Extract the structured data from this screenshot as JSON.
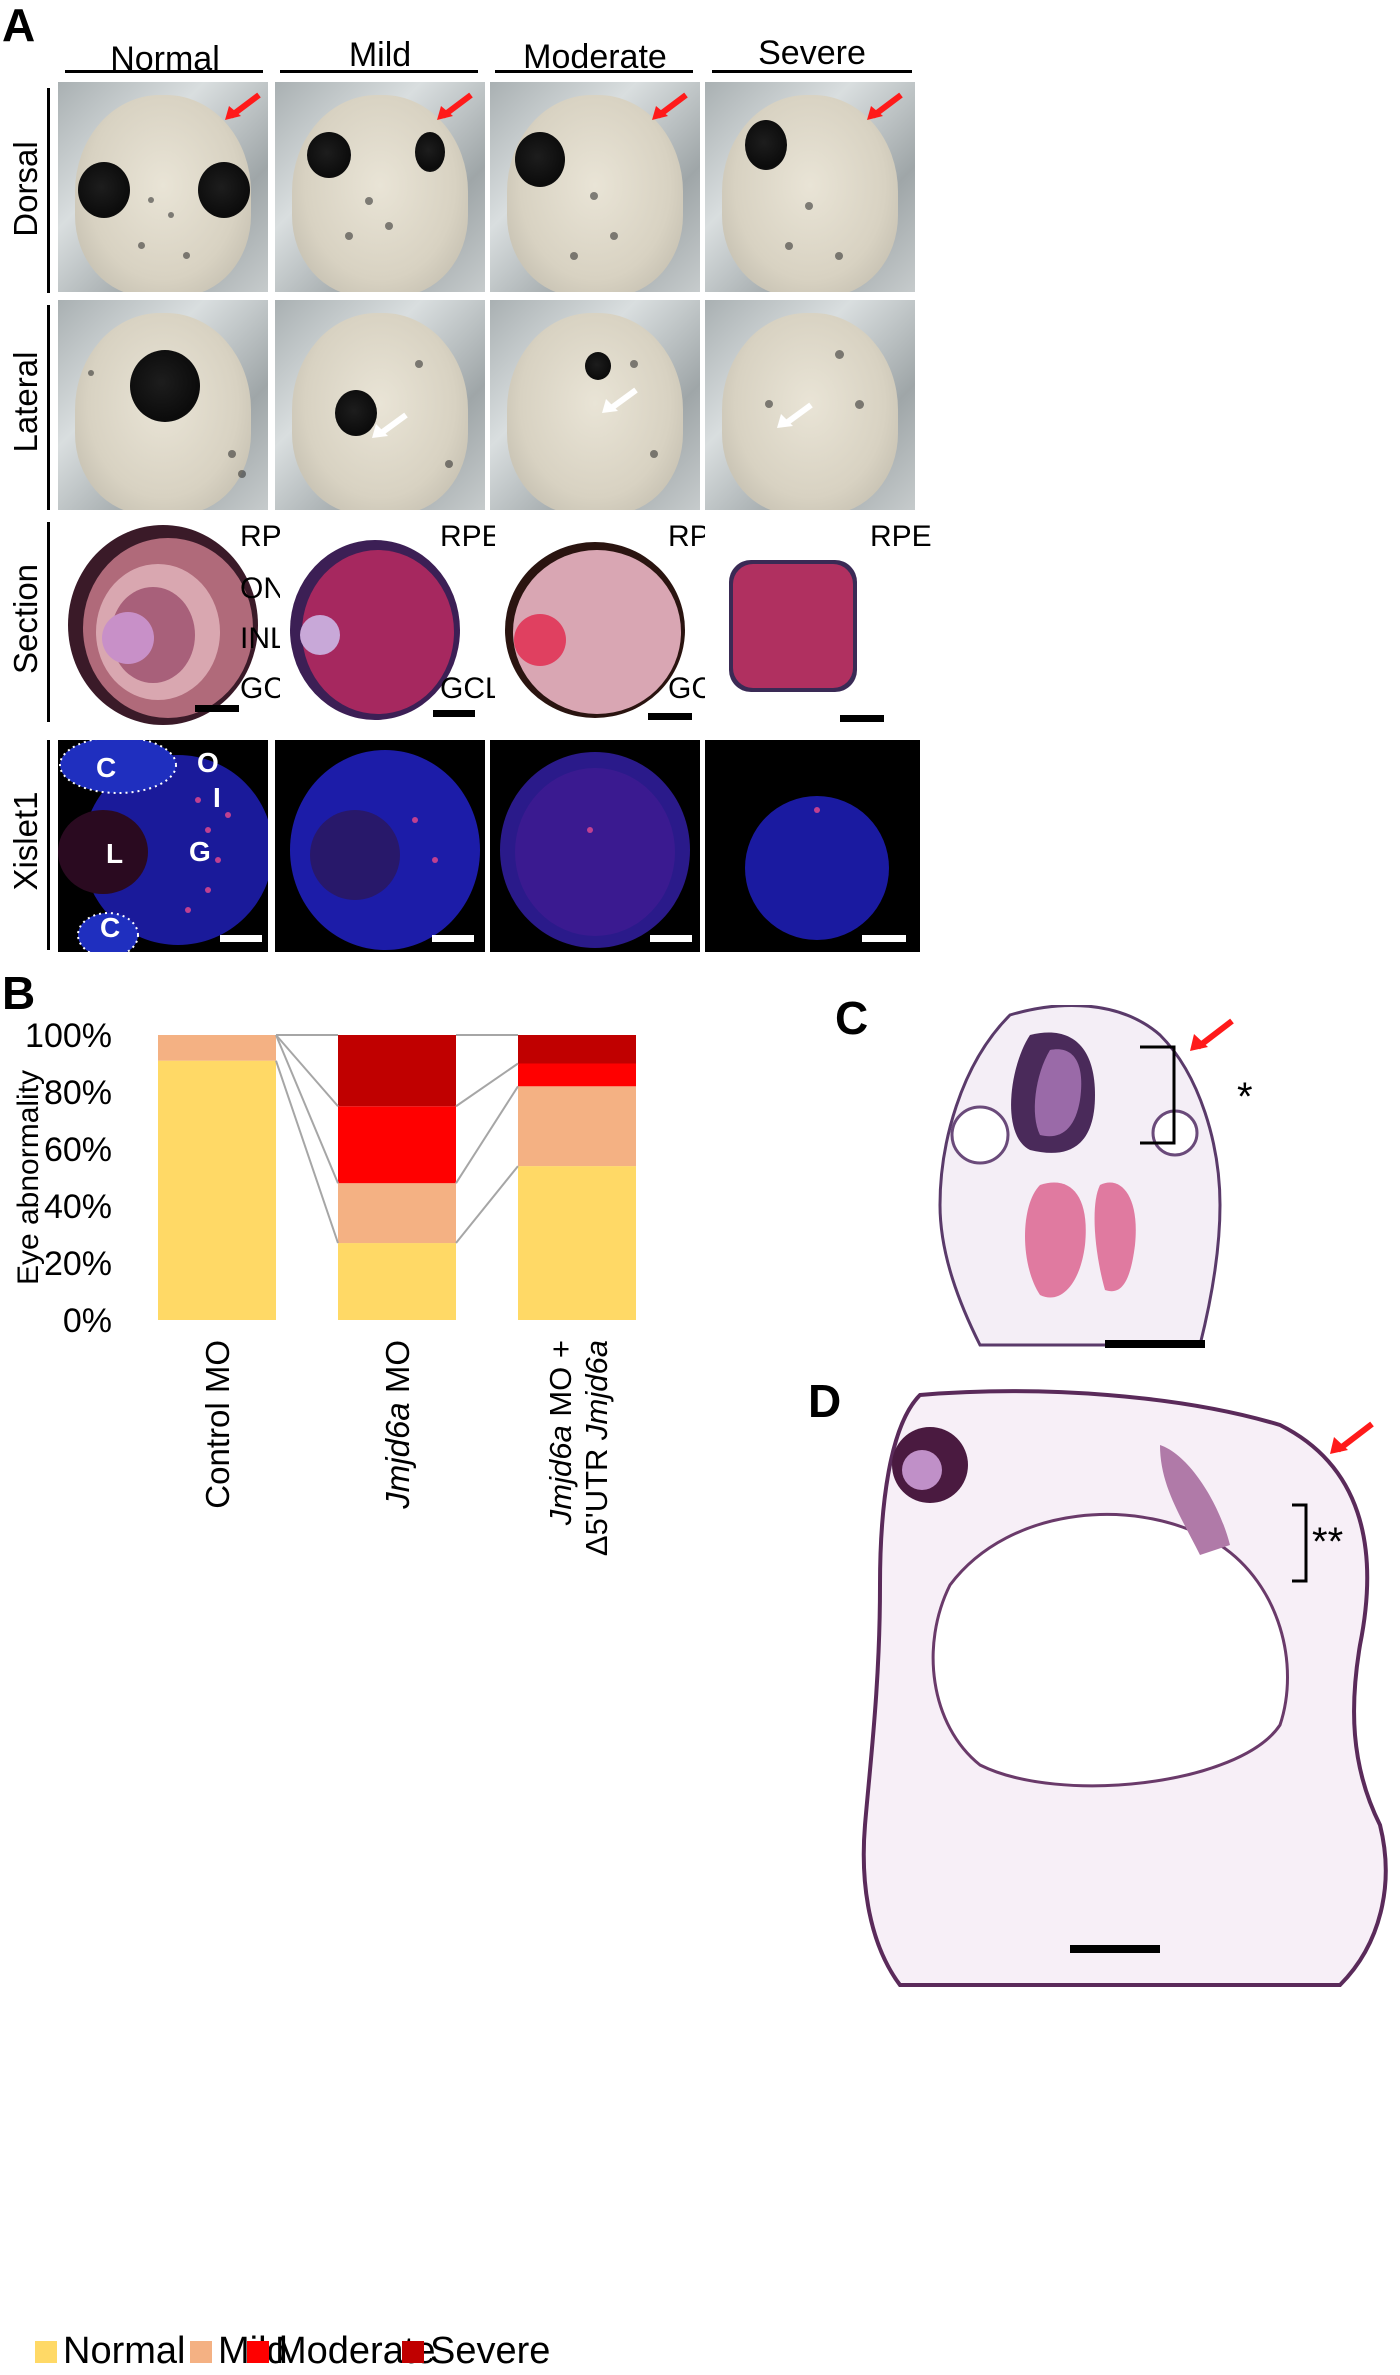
{
  "panels": {
    "A": "A",
    "B": "B",
    "C": "C",
    "D": "D"
  },
  "panelA": {
    "columns": [
      "Normal",
      "Mild",
      "Moderate",
      "Severe"
    ],
    "rows": [
      "Dorsal",
      "Lateral",
      "Section",
      "Xislet1"
    ],
    "section_labels": {
      "normal": [
        "RPE",
        "ONL",
        "INL",
        "GCL"
      ],
      "mild": [
        "RPE",
        "GCL"
      ],
      "moderate": [
        "RPE",
        "GCL"
      ],
      "severe": [
        "RPE"
      ]
    },
    "xislet_labels": [
      "C",
      "O",
      "I",
      "L",
      "G",
      "C"
    ]
  },
  "panelC": {
    "marker": "*"
  },
  "panelD": {
    "marker": "**"
  },
  "colors": {
    "normal": "#FFD966",
    "mild": "#F4B183",
    "moderate": "#FF0000",
    "severe": "#C00000",
    "arrow_red": "#ff1a1a",
    "arrow_white": "#ffffff"
  },
  "chart_data": {
    "type": "bar",
    "stacked": true,
    "ylabel": "Eye abnormality",
    "ylim": [
      0,
      100
    ],
    "yticks": [
      "0%",
      "20%",
      "40%",
      "60%",
      "80%",
      "100%"
    ],
    "categories": [
      "Control MO",
      "Jmjd6a MO",
      "Jmjd6a MO + Δ5'UTR Jmjd6a"
    ],
    "series": [
      {
        "name": "Normal",
        "values": [
          91,
          27,
          54
        ]
      },
      {
        "name": "Mild",
        "values": [
          9,
          21,
          28
        ]
      },
      {
        "name": "Moderate",
        "values": [
          0,
          27,
          8
        ]
      },
      {
        "name": "Severe",
        "values": [
          0,
          25,
          10
        ]
      }
    ],
    "legend": [
      "Normal",
      "Mild",
      "Moderate",
      "Severe"
    ],
    "legend_position": "bottom"
  }
}
